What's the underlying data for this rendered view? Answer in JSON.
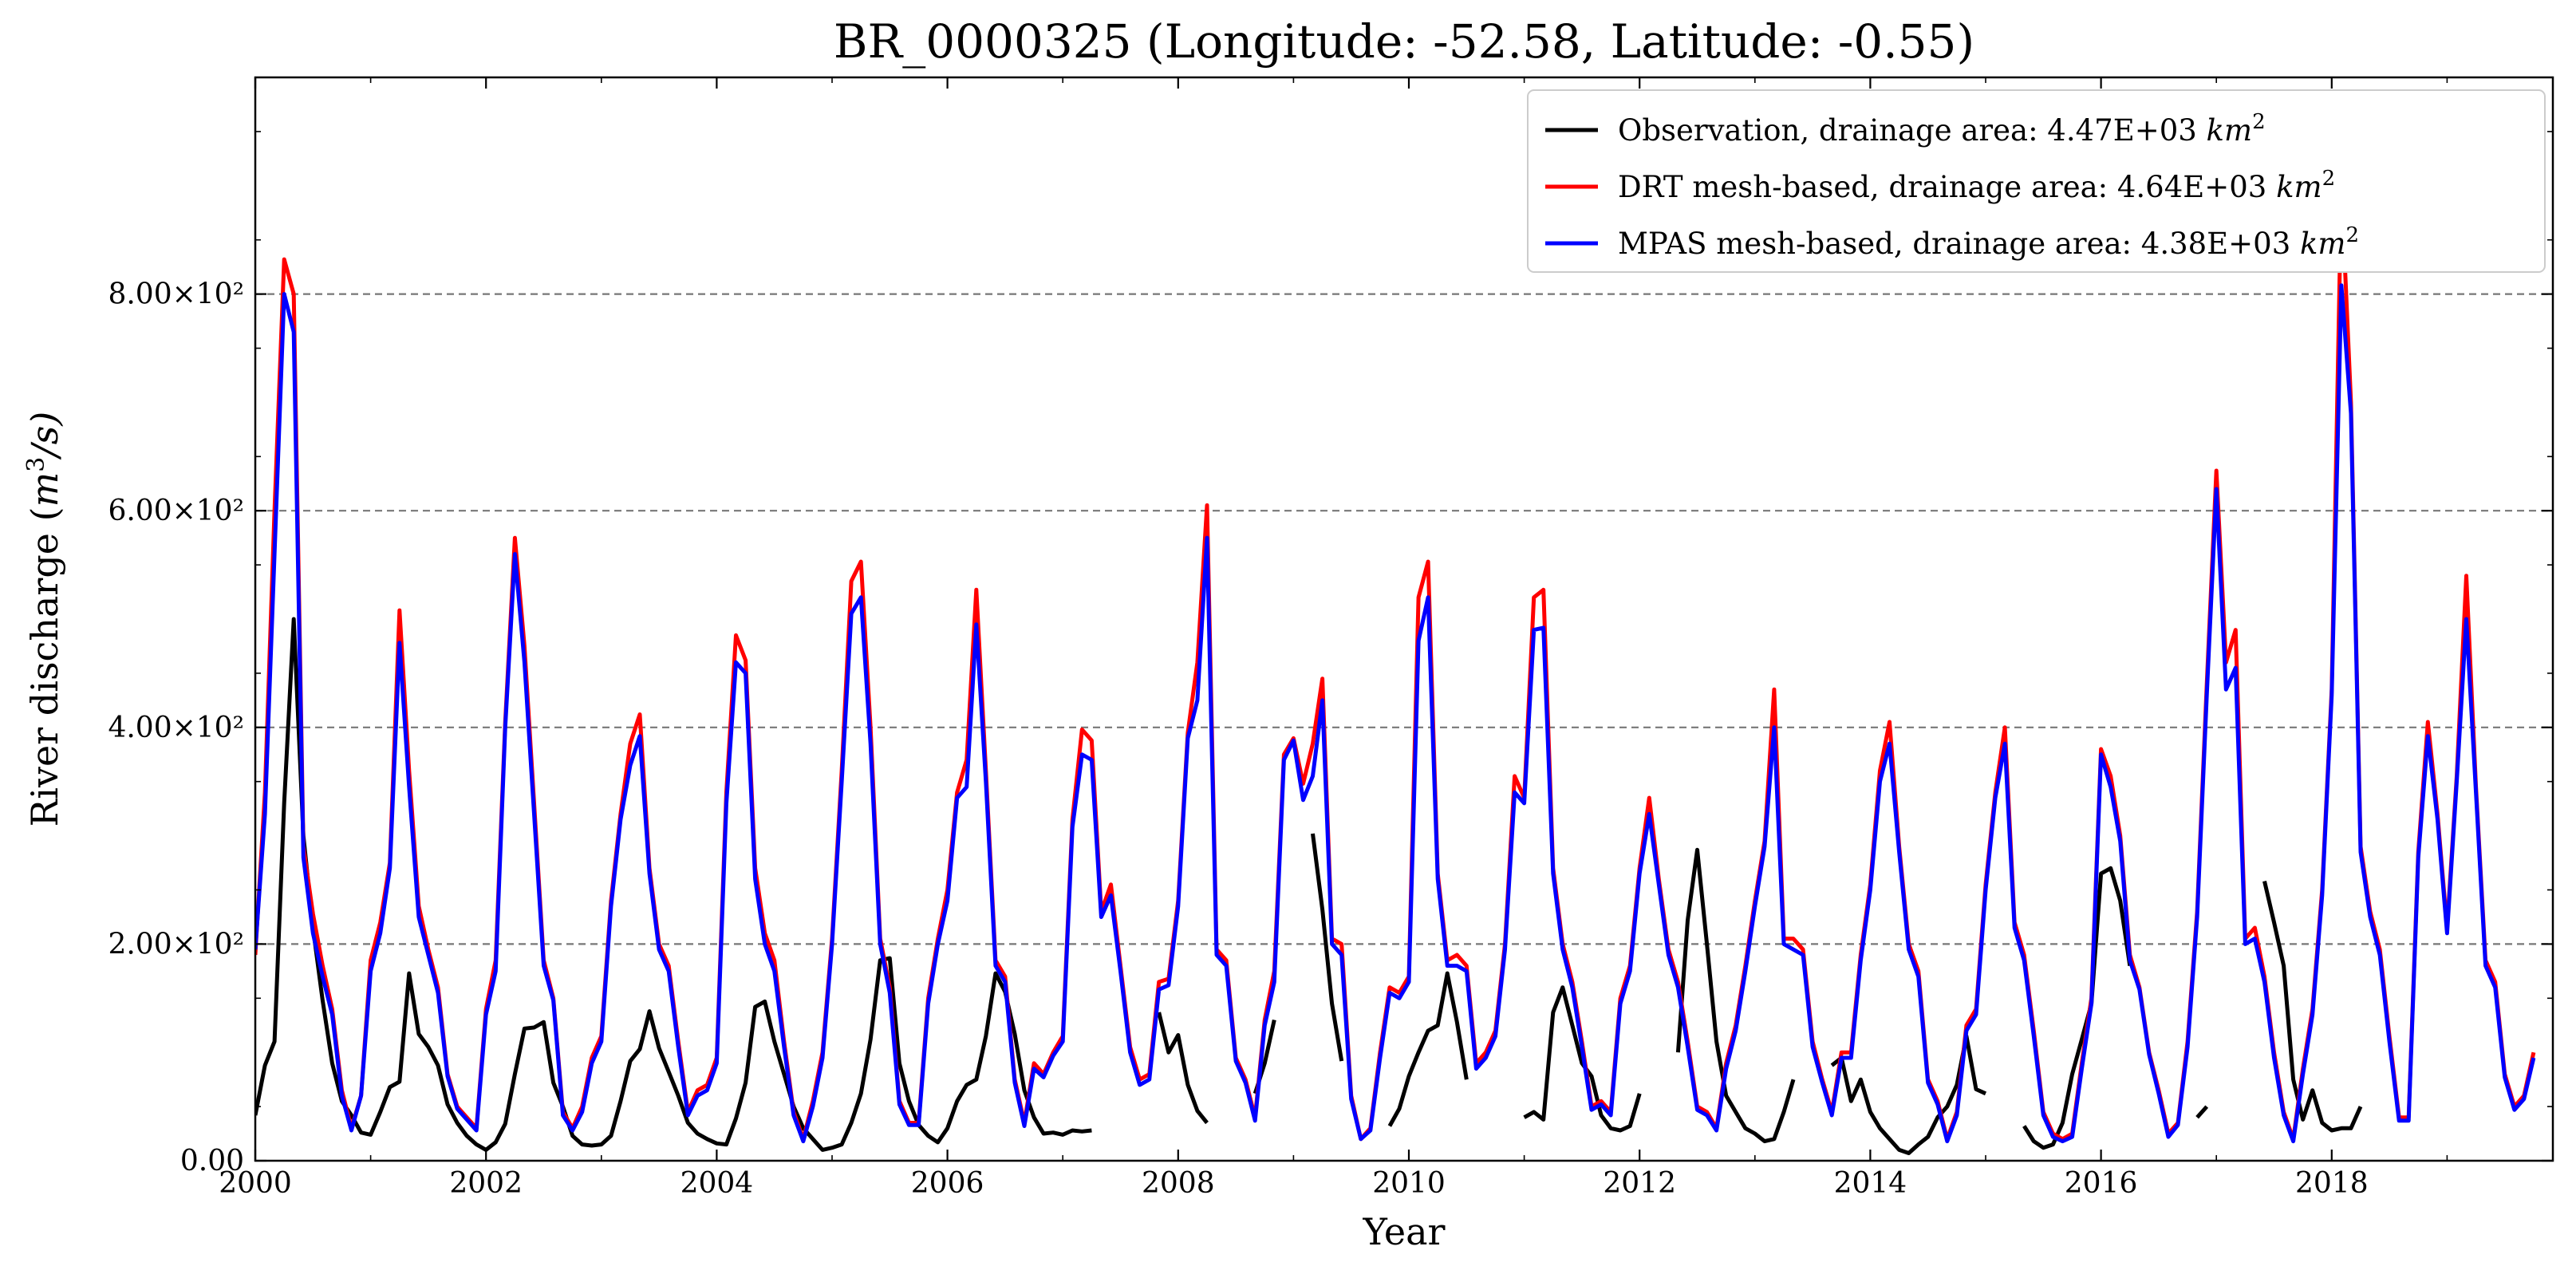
{
  "chart_data": {
    "type": "line",
    "title": "BR_0000325 (Longitude: -52.58, Latitude: -0.55)",
    "xlabel": "Year",
    "ylabel": "River discharge (m³/s)",
    "ylabel_parts": {
      "main": "River discharge (",
      "var": "m",
      "sup": "3",
      "tail": "/s)"
    },
    "xlim": [
      2000.0,
      2019.917
    ],
    "ylim": [
      0,
      1000
    ],
    "x_ticks": [
      2000,
      2002,
      2004,
      2006,
      2008,
      2010,
      2012,
      2014,
      2016,
      2018
    ],
    "x_tick_labels": [
      "2000",
      "2002",
      "2004",
      "2006",
      "2008",
      "2010",
      "2012",
      "2014",
      "2016",
      "2018"
    ],
    "y_ticks": [
      0,
      200,
      400,
      600,
      800
    ],
    "y_tick_labels": [
      "0.00",
      "2.00×10²",
      "4.00×10²",
      "6.00×10²",
      "8.00×10²"
    ],
    "grid": "horizontal dashed at y ticks",
    "legend_position": "top-right",
    "series": [
      {
        "name": "Observation, drainage area: 4.47E+03 km²",
        "legend_text": "Observation, drainage area: 4.47E+03 ",
        "legend_unit": "km",
        "color": "#000000",
        "start": "2000-01",
        "values": [
          42,
          88,
          110,
          330,
          500,
          300,
          215,
          148,
          90,
          55,
          42,
          26,
          24,
          45,
          68,
          73,
          173,
          117,
          105,
          88,
          52,
          35,
          23,
          15,
          10,
          17,
          34,
          80,
          122,
          123,
          128,
          72,
          50,
          23,
          15,
          14,
          15,
          23,
          55,
          92,
          103,
          138,
          104,
          82,
          60,
          35,
          25,
          20,
          16,
          15,
          39,
          72,
          142,
          147,
          110,
          80,
          50,
          30,
          20,
          10,
          12,
          15,
          35,
          62,
          112,
          185,
          187,
          90,
          55,
          33,
          23,
          17,
          30,
          55,
          70,
          75,
          115,
          173,
          156,
          117,
          65,
          40,
          25,
          26,
          24,
          28,
          27,
          28,
          null,
          null,
          null,
          null,
          null,
          null,
          137,
          100,
          116,
          70,
          46,
          35,
          null,
          null,
          null,
          null,
          62,
          90,
          130,
          null,
          null,
          null,
          302,
          232,
          145,
          92,
          null,
          null,
          null,
          null,
          32,
          48,
          78,
          100,
          120,
          125,
          173,
          128,
          75,
          null,
          null,
          null,
          null,
          null,
          40,
          45,
          38,
          137,
          160,
          125,
          90,
          78,
          42,
          30,
          28,
          32,
          62,
          null,
          null,
          null,
          100,
          222,
          287,
          200,
          110,
          60,
          45,
          30,
          25,
          18,
          20,
          45,
          75,
          null,
          null,
          null,
          88,
          95,
          55,
          75,
          45,
          30,
          20,
          10,
          7,
          15,
          22,
          40,
          50,
          70,
          115,
          66,
          62,
          null,
          null,
          null,
          32,
          18,
          12,
          15,
          35,
          80,
          112,
          145,
          265,
          270,
          240,
          180,
          null,
          null,
          null,
          null,
          null,
          null,
          40,
          50,
          null,
          null,
          null,
          null,
          null,
          258,
          220,
          180,
          75,
          38,
          65,
          35,
          28,
          30,
          30,
          50,
          null,
          null,
          null,
          null,
          null,
          null,
          null,
          null,
          null,
          null,
          null,
          null,
          null,
          null,
          null,
          null,
          null,
          null,
          null,
          null,
          null,
          null,
          null,
          null,
          null,
          null,
          null,
          null,
          null,
          null,
          null,
          null,
          null,
          null,
          null,
          null,
          null,
          null,
          null,
          null,
          null,
          null,
          null,
          null,
          null,
          null,
          null,
          null,
          null,
          null,
          null,
          null,
          null
        ]
      },
      {
        "name": "DRT mesh-based, drainage area: 4.64E+03 km²",
        "legend_text": "DRT mesh-based, drainage area: 4.64E+03 ",
        "legend_unit": "km",
        "color": "#ff0000",
        "start": "2000-01",
        "values": [
          190,
          340,
          600,
          832,
          800,
          290,
          228,
          180,
          140,
          65,
          30,
          60,
          185,
          220,
          275,
          508,
          360,
          235,
          195,
          160,
          80,
          50,
          40,
          30,
          140,
          185,
          405,
          575,
          475,
          330,
          185,
          150,
          45,
          30,
          50,
          95,
          115,
          240,
          320,
          385,
          412,
          270,
          200,
          180,
          110,
          45,
          65,
          70,
          95,
          340,
          485,
          462,
          270,
          210,
          185,
          110,
          45,
          20,
          55,
          100,
          205,
          360,
          535,
          553,
          400,
          205,
          160,
          55,
          35,
          35,
          150,
          205,
          250,
          340,
          370,
          527,
          360,
          185,
          170,
          75,
          35,
          90,
          80,
          100,
          115,
          315,
          398,
          388,
          230,
          255,
          180,
          105,
          75,
          80,
          165,
          168,
          240,
          395,
          460,
          605,
          195,
          185,
          95,
          75,
          40,
          130,
          175,
          375,
          390,
          348,
          385,
          445,
          205,
          200,
          60,
          20,
          30,
          100,
          160,
          155,
          170,
          520,
          553,
          265,
          185,
          190,
          180,
          90,
          100,
          120,
          200,
          355,
          335,
          520,
          527,
          270,
          200,
          165,
          110,
          50,
          55,
          45,
          150,
          180,
          270,
          335,
          260,
          195,
          165,
          110,
          50,
          45,
          30,
          90,
          125,
          180,
          240,
          295,
          435,
          205,
          205,
          195,
          110,
          75,
          45,
          100,
          100,
          190,
          255,
          360,
          405,
          290,
          200,
          175,
          75,
          55,
          20,
          45,
          125,
          140,
          255,
          340,
          400,
          220,
          190,
          120,
          45,
          25,
          20,
          25,
          90,
          150,
          380,
          355,
          300,
          190,
          160,
          100,
          65,
          25,
          35,
          110,
          230,
          440,
          637,
          460,
          490,
          205,
          215,
          170,
          100,
          45,
          20,
          85,
          140,
          250,
          435,
          900,
          700,
          290,
          230,
          195,
          115,
          40,
          40,
          285,
          405,
          320,
          215,
          355,
          540,
          345,
          185,
          165,
          80,
          50,
          60,
          100
        ]
      },
      {
        "name": "MPAS mesh-based, drainage area: 4.38E+03 km²",
        "legend_text": "MPAS mesh-based, drainage area: 4.38E+03 ",
        "legend_unit": "km",
        "color": "#0000ff",
        "start": "2000-01",
        "values": [
          195,
          320,
          560,
          800,
          765,
          280,
          210,
          170,
          135,
          60,
          28,
          60,
          175,
          210,
          270,
          478,
          345,
          225,
          190,
          155,
          78,
          48,
          38,
          28,
          135,
          175,
          400,
          560,
          460,
          320,
          180,
          148,
          42,
          28,
          45,
          90,
          110,
          235,
          315,
          365,
          392,
          265,
          195,
          175,
          105,
          42,
          60,
          65,
          90,
          330,
          460,
          450,
          260,
          200,
          175,
          105,
          42,
          18,
          50,
          95,
          200,
          350,
          505,
          520,
          385,
          200,
          155,
          52,
          33,
          33,
          145,
          200,
          240,
          335,
          345,
          495,
          350,
          180,
          165,
          72,
          32,
          85,
          77,
          97,
          110,
          308,
          375,
          370,
          225,
          245,
          175,
          100,
          70,
          75,
          158,
          162,
          235,
          390,
          425,
          575,
          190,
          180,
          92,
          72,
          37,
          125,
          165,
          370,
          388,
          333,
          355,
          425,
          200,
          190,
          57,
          20,
          28,
          95,
          155,
          150,
          165,
          480,
          520,
          260,
          180,
          180,
          175,
          85,
          95,
          115,
          195,
          340,
          330,
          490,
          492,
          265,
          195,
          160,
          105,
          47,
          52,
          42,
          145,
          175,
          265,
          320,
          255,
          190,
          160,
          105,
          47,
          42,
          28,
          85,
          120,
          175,
          235,
          290,
          400,
          200,
          195,
          190,
          105,
          72,
          42,
          95,
          95,
          185,
          250,
          350,
          385,
          285,
          195,
          170,
          72,
          52,
          18,
          42,
          120,
          135,
          250,
          335,
          385,
          215,
          185,
          115,
          42,
          22,
          18,
          22,
          85,
          145,
          375,
          345,
          295,
          185,
          158,
          98,
          62,
          22,
          33,
          105,
          225,
          430,
          620,
          435,
          455,
          200,
          205,
          165,
          95,
          42,
          18,
          80,
          135,
          245,
          430,
          808,
          690,
          285,
          225,
          190,
          110,
          37,
          37,
          280,
          392,
          315,
          210,
          350,
          500,
          340,
          180,
          160,
          77,
          47,
          57,
          95
        ]
      }
    ]
  }
}
